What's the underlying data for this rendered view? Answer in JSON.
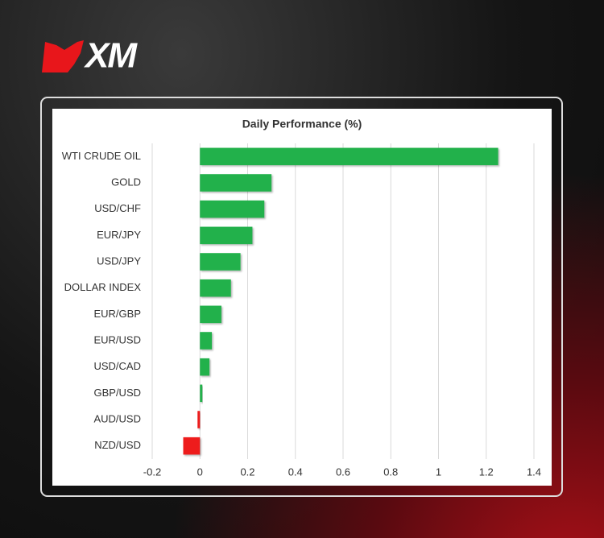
{
  "brand": "XM",
  "chart_data": {
    "type": "bar",
    "orientation": "horizontal",
    "title": "Daily Performance (%)",
    "categories": [
      "WTI CRUDE OIL",
      "GOLD",
      "USD/CHF",
      "EUR/JPY",
      "USD/JPY",
      "DOLLAR INDEX",
      "EUR/GBP",
      "EUR/USD",
      "USD/CAD",
      "GBP/USD",
      "AUD/USD",
      "NZD/USD"
    ],
    "values": [
      1.25,
      0.3,
      0.27,
      0.22,
      0.17,
      0.13,
      0.09,
      0.05,
      0.04,
      0.01,
      -0.01,
      -0.07
    ],
    "color": "#22b14c",
    "negative_color": "#ee1c1c",
    "xlim": [
      -0.2,
      1.4
    ],
    "xticks": [
      -0.2,
      0,
      0.2,
      0.4,
      0.6,
      0.8,
      1,
      1.2,
      1.4
    ],
    "grid": true
  }
}
